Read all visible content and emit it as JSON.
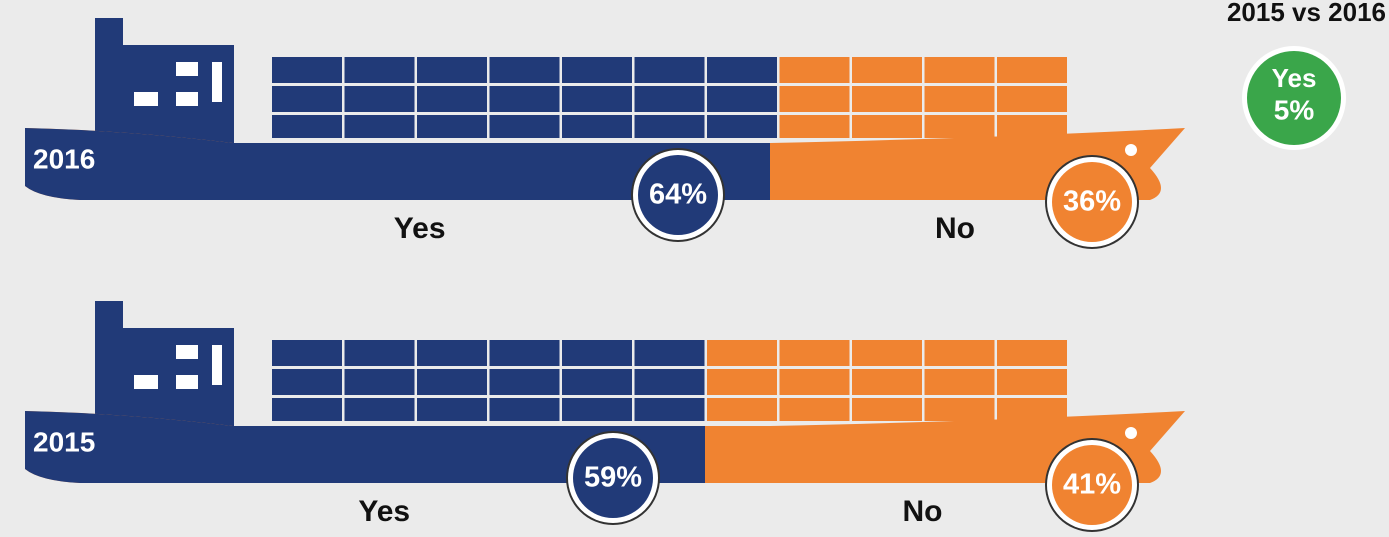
{
  "header": {
    "title": "2015 vs 2016"
  },
  "change": {
    "label": "Yes",
    "value": 5,
    "value_label": "5%",
    "color": "#3aa64a"
  },
  "ships": [
    {
      "year": "2016",
      "segments": [
        {
          "name": "Yes",
          "value": 64,
          "value_label": "64%",
          "color": "#213a78"
        },
        {
          "name": "No",
          "value": 36,
          "value_label": "36%",
          "color": "#f08331"
        }
      ]
    },
    {
      "year": "2015",
      "segments": [
        {
          "name": "Yes",
          "value": 59,
          "value_label": "59%",
          "color": "#213a78"
        },
        {
          "name": "No",
          "value": 41,
          "value_label": "41%",
          "color": "#f08331"
        }
      ]
    }
  ]
}
